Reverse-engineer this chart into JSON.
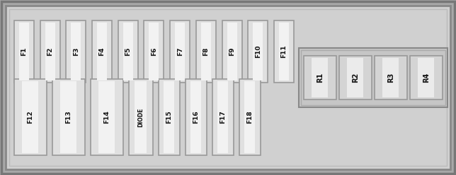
{
  "bg_outer": "#a8a8a8",
  "bg_inner": "#d0d0d0",
  "fuse_body": "#e0e0e0",
  "fuse_highlight": "#f2f2f2",
  "fuse_edge": "#999999",
  "relay_body": "#d4d4d4",
  "relay_highlight": "#ebebeb",
  "relay_edge": "#999999",
  "text_color": "#111111",
  "top_row": [
    "F1",
    "F2",
    "F3",
    "F4",
    "F5",
    "F6",
    "F7",
    "F8",
    "F9",
    "F10",
    "F11"
  ],
  "bottom_row": [
    "F12",
    "F13",
    "F14",
    "DIODE",
    "F15",
    "F16",
    "F17",
    "F18"
  ],
  "relays": [
    "R1",
    "R2",
    "R3",
    "R4"
  ],
  "figsize": [
    6.44,
    2.48
  ],
  "dpi": 100
}
